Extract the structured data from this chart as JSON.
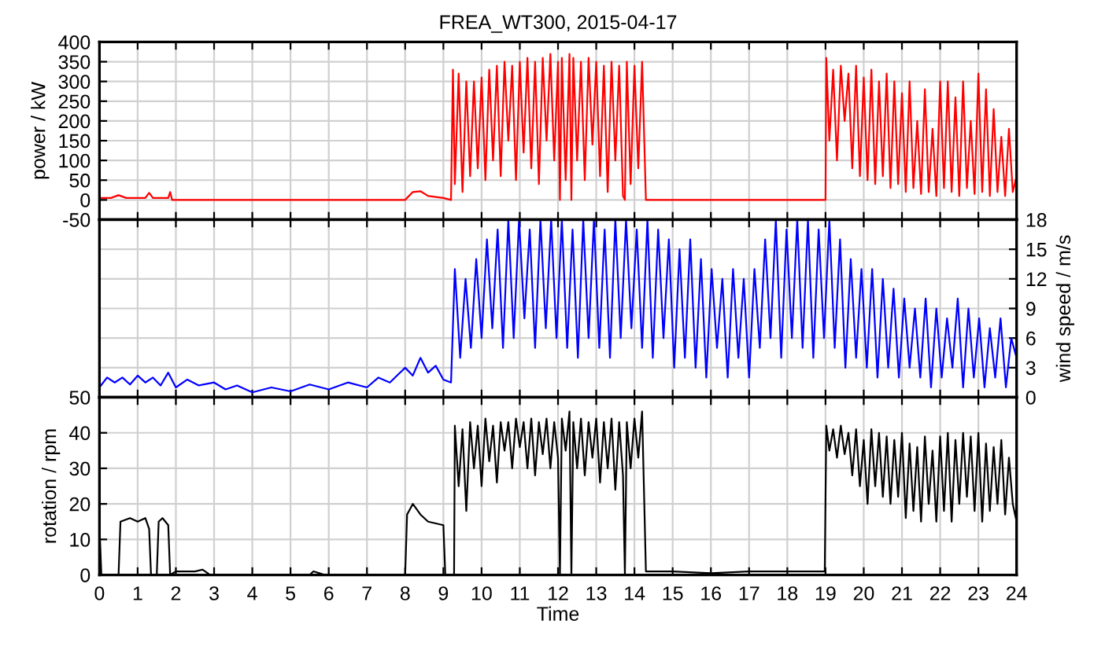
{
  "chart_data": [
    {
      "type": "line",
      "title": "FREA_WT300, 2015-04-17",
      "ylabel": "power / kW",
      "xlim": [
        0,
        24
      ],
      "xticks": [
        0,
        1,
        2,
        3,
        4,
        5,
        6,
        7,
        8,
        9,
        10,
        11,
        12,
        13,
        14,
        15,
        16,
        17,
        18,
        19,
        20,
        21,
        22,
        23,
        24
      ],
      "ylim": [
        -50,
        400
      ],
      "yticks": [
        -50,
        0,
        50,
        100,
        150,
        200,
        250,
        300,
        350,
        400
      ],
      "grid": true,
      "tick_labels": "y",
      "series": [
        {
          "color": "#ff0000",
          "x": [
            0,
            0.3,
            0.5,
            0.7,
            1.2,
            1.3,
            1.4,
            1.8,
            1.85,
            1.9,
            8,
            8.2,
            8.4,
            8.6,
            9,
            9.2,
            9.25,
            9.3,
            9.4,
            9.5,
            9.6,
            9.7,
            9.8,
            9.9,
            10,
            10.1,
            10.2,
            10.3,
            10.4,
            10.5,
            10.6,
            10.7,
            10.8,
            10.9,
            11,
            11.1,
            11.2,
            11.3,
            11.4,
            11.5,
            11.6,
            11.7,
            11.8,
            11.9,
            12,
            12.05,
            12.1,
            12.2,
            12.3,
            12.35,
            12.4,
            12.5,
            12.6,
            12.7,
            12.8,
            12.9,
            13,
            13.1,
            13.2,
            13.3,
            13.4,
            13.5,
            13.6,
            13.7,
            13.75,
            13.8,
            13.9,
            14,
            14.1,
            14.2,
            14.3,
            19,
            19.02,
            19.1,
            19.2,
            19.3,
            19.4,
            19.5,
            19.6,
            19.7,
            19.8,
            19.9,
            20,
            20.1,
            20.2,
            20.3,
            20.4,
            20.5,
            20.6,
            20.7,
            20.8,
            20.9,
            21,
            21.1,
            21.2,
            21.3,
            21.4,
            21.5,
            21.6,
            21.7,
            21.8,
            21.9,
            22,
            22.1,
            22.2,
            22.3,
            22.4,
            22.5,
            22.6,
            22.7,
            22.8,
            22.9,
            23,
            23.1,
            23.2,
            23.3,
            23.4,
            23.5,
            23.6,
            23.7,
            23.8,
            23.9,
            24
          ],
          "values": [
            5,
            5,
            12,
            5,
            5,
            18,
            5,
            5,
            20,
            0,
            0,
            20,
            22,
            10,
            5,
            0,
            330,
            40,
            320,
            20,
            300,
            60,
            300,
            80,
            310,
            50,
            330,
            100,
            340,
            60,
            350,
            150,
            340,
            50,
            350,
            120,
            360,
            80,
            350,
            40,
            360,
            150,
            370,
            100,
            350,
            0,
            360,
            50,
            370,
            0,
            360,
            100,
            350,
            50,
            360,
            140,
            350,
            60,
            340,
            20,
            350,
            100,
            340,
            10,
            0,
            350,
            40,
            340,
            80,
            350,
            0,
            0,
            360,
            150,
            330,
            100,
            340,
            200,
            320,
            80,
            340,
            60,
            310,
            50,
            330,
            40,
            300,
            60,
            320,
            30,
            300,
            40,
            270,
            20,
            300,
            30,
            200,
            15,
            280,
            20,
            180,
            10,
            300,
            30,
            300,
            20,
            260,
            10,
            300,
            30,
            200,
            15,
            320,
            20,
            280,
            10,
            230,
            20,
            160,
            10,
            180,
            20,
            60
          ]
        }
      ]
    },
    {
      "type": "line",
      "y2label": "wind speed / m/s",
      "xlim": [
        0,
        24
      ],
      "xticks": [
        0,
        1,
        2,
        3,
        4,
        5,
        6,
        7,
        8,
        9,
        10,
        11,
        12,
        13,
        14,
        15,
        16,
        17,
        18,
        19,
        20,
        21,
        22,
        23,
        24
      ],
      "y2lim": [
        0,
        18
      ],
      "y2ticks": [
        0,
        3,
        6,
        9,
        12,
        15,
        18
      ],
      "grid": true,
      "tick_labels": "y",
      "series": [
        {
          "color": "#0000ff",
          "axis": "y2",
          "x": [
            0,
            0.2,
            0.4,
            0.6,
            0.8,
            1,
            1.2,
            1.4,
            1.6,
            1.8,
            2,
            2.3,
            2.6,
            3,
            3.3,
            3.6,
            4,
            4.5,
            5,
            5.5,
            6,
            6.5,
            7,
            7.3,
            7.6,
            8,
            8.2,
            8.4,
            8.6,
            8.8,
            9,
            9.2,
            9.3,
            9.44,
            9.58,
            9.72,
            9.86,
            10,
            10.14,
            10.28,
            10.42,
            10.56,
            10.7,
            10.84,
            10.98,
            11.12,
            11.26,
            11.4,
            11.54,
            11.68,
            11.82,
            11.96,
            12.1,
            12.24,
            12.38,
            12.52,
            12.66,
            12.8,
            12.94,
            13.08,
            13.22,
            13.36,
            13.5,
            13.64,
            13.78,
            13.92,
            14.06,
            14.2,
            14.34,
            14.48,
            14.62,
            14.76,
            14.9,
            15.04,
            15.18,
            15.32,
            15.46,
            15.6,
            15.74,
            15.88,
            16.02,
            16.16,
            16.3,
            16.44,
            16.58,
            16.72,
            16.86,
            17,
            17.14,
            17.28,
            17.42,
            17.56,
            17.7,
            17.84,
            17.98,
            18.12,
            18.26,
            18.4,
            18.54,
            18.68,
            18.82,
            18.96,
            19.1,
            19.24,
            19.38,
            19.52,
            19.66,
            19.8,
            19.94,
            20.08,
            20.22,
            20.36,
            20.5,
            20.64,
            20.78,
            20.92,
            21.06,
            21.2,
            21.34,
            21.48,
            21.62,
            21.76,
            21.9,
            22.04,
            22.18,
            22.32,
            22.46,
            22.6,
            22.74,
            22.88,
            23.02,
            23.16,
            23.3,
            23.44,
            23.58,
            23.72,
            23.86,
            24
          ],
          "values": [
            1,
            2,
            1.5,
            2,
            1.3,
            2.2,
            1.5,
            2,
            1.2,
            2.5,
            1,
            1.8,
            1.2,
            1.5,
            0.8,
            1.2,
            0.5,
            1,
            0.6,
            1.3,
            0.8,
            1.5,
            1,
            2,
            1.5,
            3,
            2.2,
            4,
            2.5,
            3.2,
            1.8,
            1.5,
            13,
            4,
            12,
            5,
            14,
            6,
            16,
            7,
            17,
            5,
            18,
            6,
            18,
            8,
            17,
            5,
            18,
            7,
            18,
            6,
            18,
            5,
            17,
            4,
            18,
            6,
            18,
            5,
            17,
            4,
            18,
            6,
            18,
            7,
            17,
            5,
            18,
            4,
            17,
            6,
            16,
            3,
            15,
            4,
            16,
            3,
            14,
            2,
            13,
            5,
            12,
            2,
            13,
            4,
            12,
            2,
            13,
            5,
            16,
            6,
            18,
            4,
            17,
            6,
            18,
            5,
            18,
            4,
            17,
            6,
            18,
            5,
            16,
            3,
            14,
            4,
            13,
            3,
            13,
            2,
            12,
            3,
            11,
            2,
            10,
            3,
            9,
            2,
            10,
            1,
            9,
            2,
            8,
            3,
            10,
            1,
            9,
            2,
            8,
            1,
            7,
            2,
            8,
            1,
            6,
            4
          ]
        }
      ]
    },
    {
      "type": "line",
      "xlabel": "Time",
      "ylabel": "rotation / rpm",
      "xlim": [
        0,
        24
      ],
      "xticks": [
        0,
        1,
        2,
        3,
        4,
        5,
        6,
        7,
        8,
        9,
        10,
        11,
        12,
        13,
        14,
        15,
        16,
        17,
        18,
        19,
        20,
        21,
        22,
        23,
        24
      ],
      "ylim": [
        0,
        50
      ],
      "yticks": [
        0,
        10,
        20,
        30,
        40,
        50
      ],
      "grid": true,
      "series": [
        {
          "color": "#000000",
          "x": [
            0,
            0.05,
            0.5,
            0.55,
            0.8,
            1,
            1.2,
            1.3,
            1.35,
            1.5,
            1.55,
            1.65,
            1.8,
            1.85,
            2,
            2.5,
            2.7,
            2.9,
            5.5,
            5.6,
            5.9,
            8,
            8.05,
            8.2,
            8.4,
            8.6,
            9,
            9.05,
            9.28,
            9.3,
            9.4,
            9.5,
            9.6,
            9.7,
            9.8,
            9.9,
            10,
            10.1,
            10.2,
            10.3,
            10.4,
            10.5,
            10.6,
            10.7,
            10.8,
            10.9,
            11,
            11.1,
            11.2,
            11.3,
            11.4,
            11.5,
            11.6,
            11.7,
            11.8,
            11.9,
            12,
            12.05,
            12.1,
            12.2,
            12.3,
            12.35,
            12.4,
            12.5,
            12.6,
            12.7,
            12.8,
            12.9,
            13,
            13.1,
            13.2,
            13.3,
            13.4,
            13.5,
            13.6,
            13.7,
            13.75,
            13.8,
            13.9,
            14,
            14.1,
            14.2,
            14.3,
            15,
            16,
            17,
            18,
            18.98,
            19.02,
            19.1,
            19.2,
            19.3,
            19.4,
            19.5,
            19.6,
            19.7,
            19.8,
            19.9,
            20,
            20.1,
            20.2,
            20.3,
            20.4,
            20.5,
            20.6,
            20.7,
            20.8,
            20.9,
            21,
            21.1,
            21.2,
            21.3,
            21.4,
            21.5,
            21.6,
            21.7,
            21.8,
            21.9,
            22,
            22.1,
            22.2,
            22.3,
            22.4,
            22.5,
            22.6,
            22.7,
            22.8,
            22.9,
            23,
            23.1,
            23.2,
            23.3,
            23.4,
            23.5,
            23.6,
            23.7,
            23.8,
            23.9,
            24
          ],
          "values": [
            14,
            0,
            0,
            15,
            16,
            15,
            16,
            13,
            0,
            0,
            15,
            16,
            14,
            0,
            1,
            1,
            1.5,
            0,
            0,
            1,
            0,
            0,
            17,
            20,
            17,
            15,
            14,
            0,
            0,
            42,
            25,
            41,
            18,
            43,
            30,
            42,
            25,
            44,
            32,
            42,
            26,
            43,
            35,
            43,
            30,
            44,
            36,
            43,
            30,
            44,
            28,
            43,
            34,
            44,
            30,
            43,
            33,
            0,
            44,
            35,
            46,
            0,
            43,
            30,
            44,
            28,
            43,
            33,
            44,
            26,
            43,
            30,
            44,
            24,
            43,
            28,
            0,
            43,
            30,
            44,
            33,
            46,
            1,
            1,
            0.5,
            1,
            1,
            1,
            42,
            35,
            41,
            33,
            42,
            34,
            40,
            28,
            41,
            25,
            38,
            20,
            41,
            25,
            40,
            22,
            39,
            20,
            38,
            22,
            40,
            16,
            37,
            18,
            36,
            15,
            39,
            20,
            35,
            15,
            39,
            18,
            40,
            15,
            38,
            20,
            40,
            22,
            39,
            18,
            40,
            15,
            37,
            18,
            36,
            20,
            38,
            17,
            33,
            20,
            15
          ]
        }
      ]
    }
  ]
}
